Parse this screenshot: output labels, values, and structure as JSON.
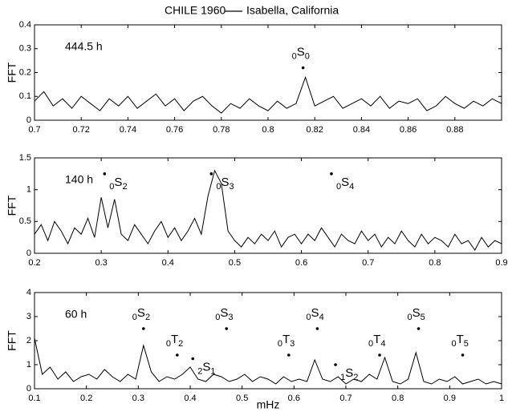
{
  "chart_data": [
    {
      "type": "line",
      "title": "CHILE 1960",
      "label": "444.5 h",
      "ylabel": "FFT",
      "xlim": [
        0.7,
        0.9
      ],
      "ylim": [
        0,
        0.4
      ],
      "xticks": [
        0.7,
        0.72,
        0.74,
        0.76,
        0.78,
        0.8,
        0.82,
        0.84,
        0.86,
        0.88
      ],
      "yticks": [
        0,
        0.1,
        0.2,
        0.3,
        0.4
      ],
      "x": [
        0.7,
        0.704,
        0.708,
        0.712,
        0.716,
        0.72,
        0.724,
        0.728,
        0.732,
        0.736,
        0.74,
        0.744,
        0.748,
        0.752,
        0.756,
        0.76,
        0.764,
        0.768,
        0.772,
        0.776,
        0.78,
        0.784,
        0.788,
        0.792,
        0.796,
        0.8,
        0.804,
        0.808,
        0.812,
        0.816,
        0.82,
        0.824,
        0.828,
        0.832,
        0.836,
        0.84,
        0.844,
        0.848,
        0.852,
        0.856,
        0.86,
        0.864,
        0.868,
        0.872,
        0.876,
        0.88,
        0.884,
        0.888,
        0.892,
        0.896,
        0.9
      ],
      "series": [
        {
          "name": "Isabella, California",
          "color": "#000000",
          "values": [
            0.08,
            0.12,
            0.06,
            0.09,
            0.05,
            0.1,
            0.07,
            0.04,
            0.09,
            0.06,
            0.1,
            0.05,
            0.08,
            0.11,
            0.06,
            0.09,
            0.04,
            0.08,
            0.1,
            0.06,
            0.03,
            0.07,
            0.05,
            0.09,
            0.06,
            0.04,
            0.08,
            0.05,
            0.07,
            0.18,
            0.06,
            0.08,
            0.1,
            0.05,
            0.07,
            0.09,
            0.06,
            0.1,
            0.05,
            0.08,
            0.07,
            0.09,
            0.04,
            0.06,
            0.1,
            0.07,
            0.05,
            0.08,
            0.06,
            0.09,
            0.07
          ]
        }
      ],
      "annotations": [
        {
          "pre": "0",
          "main": "S",
          "sub": "0",
          "x": 0.815,
          "y": 0.22
        }
      ]
    },
    {
      "type": "line",
      "label": "140 h",
      "ylabel": "FFT",
      "xlim": [
        0.2,
        0.9
      ],
      "ylim": [
        0,
        1.5
      ],
      "xticks": [
        0.2,
        0.3,
        0.4,
        0.5,
        0.6,
        0.7,
        0.8,
        0.9
      ],
      "yticks": [
        0,
        0.5,
        1,
        1.5
      ],
      "x": [
        0.2,
        0.21,
        0.22,
        0.23,
        0.24,
        0.25,
        0.26,
        0.27,
        0.28,
        0.29,
        0.3,
        0.31,
        0.32,
        0.33,
        0.34,
        0.35,
        0.36,
        0.37,
        0.38,
        0.39,
        0.4,
        0.41,
        0.42,
        0.43,
        0.44,
        0.45,
        0.46,
        0.47,
        0.48,
        0.49,
        0.5,
        0.51,
        0.52,
        0.53,
        0.54,
        0.55,
        0.56,
        0.57,
        0.58,
        0.59,
        0.6,
        0.61,
        0.62,
        0.63,
        0.64,
        0.65,
        0.66,
        0.67,
        0.68,
        0.69,
        0.7,
        0.71,
        0.72,
        0.73,
        0.74,
        0.75,
        0.76,
        0.77,
        0.78,
        0.79,
        0.8,
        0.81,
        0.82,
        0.83,
        0.84,
        0.85,
        0.86,
        0.87,
        0.88,
        0.89,
        0.9
      ],
      "series": [
        {
          "color": "#000000",
          "values": [
            0.3,
            0.45,
            0.2,
            0.5,
            0.35,
            0.15,
            0.4,
            0.3,
            0.55,
            0.25,
            0.88,
            0.4,
            0.85,
            0.3,
            0.2,
            0.45,
            0.3,
            0.15,
            0.35,
            0.5,
            0.25,
            0.4,
            0.2,
            0.35,
            0.55,
            0.3,
            0.9,
            1.3,
            1.1,
            0.35,
            0.2,
            0.1,
            0.25,
            0.15,
            0.3,
            0.2,
            0.35,
            0.1,
            0.25,
            0.3,
            0.15,
            0.3,
            0.2,
            0.4,
            0.25,
            0.1,
            0.3,
            0.2,
            0.15,
            0.35,
            0.2,
            0.3,
            0.1,
            0.25,
            0.15,
            0.35,
            0.2,
            0.1,
            0.3,
            0.15,
            0.25,
            0.2,
            0.1,
            0.3,
            0.15,
            0.2,
            0.05,
            0.25,
            0.1,
            0.2,
            0.15
          ]
        }
      ],
      "annotations": [
        {
          "pre": "0",
          "main": "S",
          "sub": "2",
          "x": 0.305,
          "y": 1.25
        },
        {
          "pre": "0",
          "main": "S",
          "sub": "3",
          "x": 0.465,
          "y": 1.25
        },
        {
          "pre": "0",
          "main": "S",
          "sub": "4",
          "x": 0.645,
          "y": 1.25
        }
      ]
    },
    {
      "type": "line",
      "label": "60 h",
      "ylabel": "FFT",
      "xlabel": "mHz",
      "xlim": [
        0.1,
        1
      ],
      "ylim": [
        0,
        4
      ],
      "xticks": [
        0.1,
        0.2,
        0.3,
        0.4,
        0.5,
        0.6,
        0.7,
        0.8,
        0.9,
        1
      ],
      "yticks": [
        0,
        1,
        2,
        3,
        4
      ],
      "x": [
        0.1,
        0.115,
        0.13,
        0.145,
        0.16,
        0.175,
        0.19,
        0.205,
        0.22,
        0.235,
        0.25,
        0.265,
        0.28,
        0.295,
        0.31,
        0.325,
        0.34,
        0.355,
        0.37,
        0.385,
        0.4,
        0.415,
        0.43,
        0.445,
        0.46,
        0.475,
        0.49,
        0.505,
        0.52,
        0.535,
        0.55,
        0.565,
        0.58,
        0.595,
        0.61,
        0.625,
        0.64,
        0.655,
        0.67,
        0.685,
        0.7,
        0.715,
        0.73,
        0.745,
        0.76,
        0.775,
        0.79,
        0.805,
        0.82,
        0.835,
        0.85,
        0.865,
        0.88,
        0.895,
        0.91,
        0.925,
        0.94,
        0.955,
        0.97,
        0.985,
        1.0
      ],
      "series": [
        {
          "color": "#000000",
          "values": [
            2.1,
            0.6,
            0.9,
            0.4,
            0.7,
            0.3,
            0.5,
            0.6,
            0.4,
            0.8,
            0.5,
            0.3,
            0.6,
            0.4,
            1.8,
            0.7,
            0.3,
            0.5,
            0.4,
            0.6,
            0.9,
            0.4,
            0.3,
            0.6,
            0.5,
            0.3,
            0.4,
            0.6,
            0.3,
            0.5,
            0.4,
            0.2,
            0.5,
            0.3,
            0.4,
            0.3,
            1.2,
            0.4,
            0.3,
            0.5,
            0.2,
            0.4,
            0.3,
            0.6,
            0.4,
            1.3,
            0.3,
            0.2,
            0.4,
            1.5,
            0.3,
            0.2,
            0.4,
            0.3,
            0.5,
            0.2,
            0.3,
            0.4,
            0.2,
            0.3,
            0.2
          ]
        }
      ],
      "annotations": [
        {
          "pre": "0",
          "main": "S",
          "sub": "2",
          "x": 0.31,
          "y": 2.5
        },
        {
          "pre": "0",
          "main": "T",
          "sub": "2",
          "x": 0.375,
          "y": 1.4
        },
        {
          "pre": "2",
          "main": "S",
          "sub": "1",
          "x": 0.405,
          "y": 1.25
        },
        {
          "pre": "0",
          "main": "S",
          "sub": "3",
          "x": 0.47,
          "y": 2.5
        },
        {
          "pre": "0",
          "main": "T",
          "sub": "3",
          "x": 0.59,
          "y": 1.4
        },
        {
          "pre": "0",
          "main": "S",
          "sub": "4",
          "x": 0.645,
          "y": 2.5
        },
        {
          "pre": "1",
          "main": "S",
          "sub": "2",
          "x": 0.68,
          "y": 1.0
        },
        {
          "pre": "0",
          "main": "T",
          "sub": "4",
          "x": 0.765,
          "y": 1.4
        },
        {
          "pre": "0",
          "main": "S",
          "sub": "5",
          "x": 0.84,
          "y": 2.5
        },
        {
          "pre": "0",
          "main": "T",
          "sub": "5",
          "x": 0.925,
          "y": 1.4
        }
      ]
    }
  ]
}
